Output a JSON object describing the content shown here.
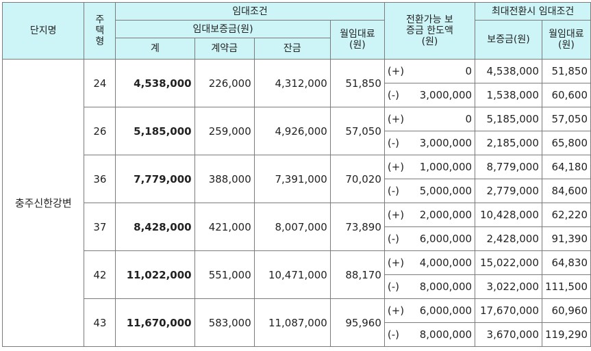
{
  "headers": {
    "complex": "단지명",
    "type": "주택형",
    "rent_conditions": "임대조건",
    "deposit": "임대보증금(원)",
    "total": "계",
    "contract": "계약금",
    "balance": "잔금",
    "monthly": "월임대료(원)",
    "convertible": "전환가능 보증금 한도액(원)",
    "max_conversion": "최대전환시 임대조건",
    "max_deposit": "보증금(원)",
    "max_monthly": "월임대료(원)"
  },
  "complex_name": "충주신한강변",
  "rows": [
    {
      "type": "24",
      "total": "4,538,000",
      "contract": "226,000",
      "balance": "4,312,000",
      "monthly": "51,850",
      "options": [
        {
          "sign": "(+)",
          "limit": "0",
          "deposit": "4,538,000",
          "monthly": "51,850"
        },
        {
          "sign": "(-)",
          "limit": "3,000,000",
          "deposit": "1,538,000",
          "monthly": "60,600"
        }
      ]
    },
    {
      "type": "26",
      "total": "5,185,000",
      "contract": "259,000",
      "balance": "4,926,000",
      "monthly": "57,050",
      "options": [
        {
          "sign": "(+)",
          "limit": "0",
          "deposit": "5,185,000",
          "monthly": "57,050"
        },
        {
          "sign": "(-)",
          "limit": "3,000,000",
          "deposit": "2,185,000",
          "monthly": "65,800"
        }
      ]
    },
    {
      "type": "36",
      "total": "7,779,000",
      "contract": "388,000",
      "balance": "7,391,000",
      "monthly": "70,020",
      "options": [
        {
          "sign": "(+)",
          "limit": "1,000,000",
          "deposit": "8,779,000",
          "monthly": "64,180"
        },
        {
          "sign": "(-)",
          "limit": "5,000,000",
          "deposit": "2,779,000",
          "monthly": "84,600"
        }
      ]
    },
    {
      "type": "37",
      "total": "8,428,000",
      "contract": "421,000",
      "balance": "8,007,000",
      "monthly": "73,890",
      "options": [
        {
          "sign": "(+)",
          "limit": "2,000,000",
          "deposit": "10,428,000",
          "monthly": "62,220"
        },
        {
          "sign": "(-)",
          "limit": "6,000,000",
          "deposit": "2,428,000",
          "monthly": "91,390"
        }
      ]
    },
    {
      "type": "42",
      "total": "11,022,000",
      "contract": "551,000",
      "balance": "10,471,000",
      "monthly": "88,170",
      "options": [
        {
          "sign": "(+)",
          "limit": "4,000,000",
          "deposit": "15,022,000",
          "monthly": "64,830"
        },
        {
          "sign": "(-)",
          "limit": "8,000,000",
          "deposit": "3,022,000",
          "monthly": "111,500"
        }
      ]
    },
    {
      "type": "43",
      "total": "11,670,000",
      "contract": "583,000",
      "balance": "11,087,000",
      "monthly": "95,960",
      "options": [
        {
          "sign": "(+)",
          "limit": "6,000,000",
          "deposit": "17,670,000",
          "monthly": "60,960"
        },
        {
          "sign": "(-)",
          "limit": "8,000,000",
          "deposit": "3,670,000",
          "monthly": "119,290"
        }
      ]
    }
  ]
}
